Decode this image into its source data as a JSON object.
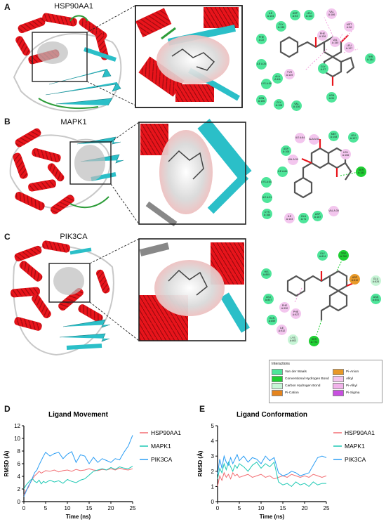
{
  "panels": {
    "A": {
      "letter": "A",
      "protein": "HSP90AA1"
    },
    "B": {
      "letter": "B",
      "protein": "MAPK1"
    },
    "C": {
      "letter": "C",
      "protein": "PIK3CA"
    },
    "D": {
      "letter": "D"
    },
    "E": {
      "letter": "E"
    }
  },
  "colors": {
    "helix": "#e8141b",
    "sheet": "#2bbfc8",
    "coil": "#c8c8c8",
    "turn": "#2e9d3a"
  },
  "residues": {
    "A": [
      {
        "id": "r1",
        "label": "ILE A:104",
        "type": "vdw"
      },
      {
        "id": "r2",
        "label": "GLY A:135",
        "type": "vdw"
      },
      {
        "id": "r3",
        "label": "ASP A:93",
        "type": "vdw"
      },
      {
        "id": "r4",
        "label": "LEU A:103",
        "type": "vdw"
      },
      {
        "id": "r5",
        "label": "VAL A:186",
        "type": "alkyl"
      },
      {
        "id": "r6",
        "label": "MET A:98",
        "type": "alkyl"
      },
      {
        "id": "r7",
        "label": "PHE A:138",
        "type": "alkyl"
      },
      {
        "id": "r8",
        "label": "VAL A:150",
        "type": "alkyl"
      },
      {
        "id": "r9",
        "label": "LEU A:107",
        "type": "alkyl"
      },
      {
        "id": "r10",
        "label": "PHE A:22",
        "type": "vdw"
      },
      {
        "id": "r11",
        "label": "ILE A:26",
        "type": "vdw"
      },
      {
        "id": "r12",
        "label": "THR A:184",
        "type": "vdw"
      },
      {
        "id": "r13",
        "label": "TYR A:139",
        "type": "alkyl"
      },
      {
        "id": "r14",
        "label": "ALA A:111",
        "type": "vdw"
      },
      {
        "id": "r15",
        "label": "LYS A:58",
        "type": "vdw"
      },
      {
        "id": "r16",
        "label": "ASN A:106",
        "type": "vdw"
      },
      {
        "id": "r17",
        "label": "GLY A:108",
        "type": "vdw"
      },
      {
        "id": "r18",
        "label": "VAL A:136",
        "type": "vdw"
      },
      {
        "id": "r19",
        "label": "ASN A:51",
        "type": "vdw"
      },
      {
        "id": "r20",
        "label": "GLY A:97",
        "type": "vdw"
      }
    ],
    "B": [
      {
        "id": "b1",
        "label": "ASP A:106",
        "type": "vdw"
      },
      {
        "id": "b2",
        "label": "ILE A:84",
        "type": "alkyl"
      },
      {
        "id": "b3",
        "label": "ALA A:52",
        "type": "alkyl"
      },
      {
        "id": "b4",
        "label": "MET A:108",
        "type": "vdw"
      },
      {
        "id": "b5",
        "label": "LEU A:107",
        "type": "vdw"
      },
      {
        "id": "b6",
        "label": "VAL A:39",
        "type": "alkyl"
      },
      {
        "id": "b7",
        "label": "ILE A:84",
        "type": "vdw"
      },
      {
        "id": "b8",
        "label": "LEU A:156",
        "type": "alkyl"
      },
      {
        "id": "b9",
        "label": "LYS A:54",
        "type": "vdw"
      },
      {
        "id": "b10",
        "label": "ILE A:31",
        "type": "vdw"
      },
      {
        "id": "b11",
        "label": "CYS A:166",
        "type": "vdw"
      },
      {
        "id": "b12",
        "label": "ILE A:103",
        "type": "alkyl"
      },
      {
        "id": "b13",
        "label": "GLU A:71",
        "type": "vdw"
      },
      {
        "id": "b14",
        "label": "ASP A:167",
        "type": "vdw"
      },
      {
        "id": "b15",
        "label": "VAL A:39",
        "type": "alkyl"
      },
      {
        "id": "b16",
        "label": "SER A:153",
        "type": "hb"
      }
    ],
    "C": [
      {
        "id": "c1",
        "label": "GLY A:814",
        "type": "vdw"
      },
      {
        "id": "c2",
        "label": "TRP A:780",
        "type": "hb"
      },
      {
        "id": "c3",
        "label": "HIS A:855",
        "type": "vdw"
      },
      {
        "id": "c4",
        "label": "ASP A:810",
        "type": "anion"
      },
      {
        "id": "c5",
        "label": "GLU A:826",
        "type": "chb"
      },
      {
        "id": "c6",
        "label": "LEU A:807",
        "type": "vdw"
      },
      {
        "id": "c7",
        "label": "PHE A:930",
        "type": "alkyl"
      },
      {
        "id": "c8",
        "label": "PHE A:927",
        "type": "alkyl"
      },
      {
        "id": "c9",
        "label": "ASN A:851",
        "type": "vdw"
      },
      {
        "id": "c10",
        "label": "ILE A:932",
        "type": "alkyl"
      },
      {
        "id": "c11",
        "label": "GLN A:859",
        "type": "vdw"
      },
      {
        "id": "c12",
        "label": "LYS A:802",
        "type": "chb"
      },
      {
        "id": "c13",
        "label": "SER A:774",
        "type": "hb"
      }
    ]
  },
  "legend": {
    "title": "Interactions",
    "items": [
      {
        "label": "Van der Waals",
        "color": "#4ee59a"
      },
      {
        "label": "Conventional Hydrogen Bond",
        "color": "#1fcf33"
      },
      {
        "label": "Carbon Hydrogen Bond",
        "color": "#c7f5d6"
      },
      {
        "label": "Pi-Cation",
        "color": "#e5841d"
      },
      {
        "label": "Pi-Anion",
        "color": "#e89928"
      },
      {
        "label": "Alkyl",
        "color": "#f3c6ee"
      },
      {
        "label": "Pi-Alkyl",
        "color": "#f1b3ea"
      },
      {
        "label": "Pi-Sigma",
        "color": "#c84fe0"
      }
    ]
  },
  "chart_data": [
    {
      "type": "line",
      "title": "Ligand Movement",
      "xlabel": "Time (ns)",
      "ylabel": "RMSD (Å)",
      "xlim": [
        0,
        25
      ],
      "ylim": [
        0,
        12
      ],
      "xticks": [
        "0",
        "5",
        "10",
        "15",
        "20",
        "25"
      ],
      "yticks": [
        "0",
        "2",
        "4",
        "6",
        "8",
        "10",
        "12"
      ],
      "series": [
        {
          "name": "HSP90AA1",
          "color": "#f26d72",
          "x": [
            0,
            0.5,
            1,
            1.5,
            2,
            2.5,
            3,
            3.5,
            4,
            4.5,
            5,
            6,
            7,
            8,
            9,
            10,
            11,
            12,
            13,
            14,
            15,
            16,
            17,
            18,
            19,
            20,
            21,
            22,
            23,
            24,
            25
          ],
          "y": [
            1.0,
            1.8,
            2.2,
            3.0,
            3.6,
            4.1,
            4.4,
            4.8,
            4.5,
            4.7,
            4.9,
            4.8,
            5.0,
            4.7,
            4.9,
            5.0,
            4.8,
            5.1,
            4.9,
            5.0,
            5.2,
            5.0,
            4.9,
            5.1,
            5.0,
            5.2,
            5.0,
            5.3,
            5.1,
            5.0,
            5.2
          ]
        },
        {
          "name": "MAPK1",
          "color": "#1ec9b4",
          "x": [
            0,
            0.5,
            1,
            1.5,
            2,
            2.5,
            3,
            3.5,
            4,
            4.5,
            5,
            6,
            7,
            8,
            9,
            10,
            11,
            12,
            13,
            14,
            15,
            16,
            17,
            18,
            19,
            20,
            21,
            22,
            23,
            24,
            25
          ],
          "y": [
            2.0,
            2.6,
            3.0,
            3.4,
            3.6,
            3.2,
            3.0,
            3.4,
            2.8,
            3.2,
            3.0,
            3.4,
            3.1,
            3.3,
            2.9,
            3.5,
            3.2,
            3.0,
            3.4,
            3.6,
            4.2,
            4.8,
            5.0,
            5.2,
            5.0,
            5.4,
            5.1,
            5.5,
            5.3,
            5.2,
            5.6
          ]
        },
        {
          "name": "PIK3CA",
          "color": "#2a9df4",
          "x": [
            0,
            0.5,
            1,
            1.5,
            2,
            2.5,
            3,
            3.5,
            4,
            4.5,
            5,
            6,
            7,
            8,
            9,
            10,
            11,
            12,
            13,
            14,
            15,
            16,
            17,
            18,
            19,
            20,
            21,
            22,
            23,
            24,
            25
          ],
          "y": [
            0.8,
            1.6,
            2.4,
            3.0,
            3.8,
            4.6,
            5.0,
            5.8,
            6.5,
            7.2,
            7.8,
            7.2,
            7.6,
            7.8,
            6.8,
            7.5,
            7.9,
            6.2,
            7.4,
            7.2,
            6.0,
            7.0,
            6.2,
            6.8,
            6.5,
            6.2,
            6.8,
            6.6,
            7.8,
            8.8,
            10.5
          ]
        }
      ]
    },
    {
      "type": "line",
      "title": "Ligand Conformation",
      "xlabel": "Time (ns)",
      "ylabel": "RMSD (Å)",
      "xlim": [
        0,
        25
      ],
      "ylim": [
        0,
        5
      ],
      "xticks": [
        "0",
        "5",
        "10",
        "15",
        "20",
        "25"
      ],
      "yticks": [
        "0",
        "1",
        "2",
        "3",
        "4",
        "5"
      ],
      "series": [
        {
          "name": "HSP90AA1",
          "color": "#f26d72",
          "x": [
            0,
            0.5,
            1,
            1.5,
            2,
            2.5,
            3,
            3.5,
            4,
            4.5,
            5,
            6,
            7,
            8,
            9,
            10,
            11,
            12,
            13,
            14,
            15,
            16,
            17,
            18,
            19,
            20,
            21,
            22,
            23,
            24,
            25
          ],
          "y": [
            1.0,
            1.7,
            1.4,
            1.9,
            1.6,
            1.8,
            1.5,
            1.9,
            1.7,
            1.8,
            1.6,
            1.7,
            1.8,
            1.6,
            1.7,
            1.8,
            1.6,
            1.7,
            1.5,
            1.6,
            1.7,
            1.6,
            1.8,
            1.7,
            1.6,
            1.7,
            1.6,
            1.8,
            1.7,
            1.6,
            1.7
          ]
        },
        {
          "name": "MAPK1",
          "color": "#1ec9b4",
          "x": [
            0,
            0.5,
            1,
            1.5,
            2,
            2.5,
            3,
            3.5,
            4,
            4.5,
            5,
            6,
            7,
            8,
            9,
            10,
            11,
            12,
            13,
            14,
            15,
            16,
            17,
            18,
            19,
            20,
            21,
            22,
            23,
            24,
            25
          ],
          "y": [
            1.5,
            2.2,
            1.9,
            2.5,
            2.1,
            2.6,
            2.3,
            2.0,
            2.4,
            2.2,
            2.5,
            2.3,
            2.0,
            2.4,
            2.6,
            2.2,
            2.5,
            2.3,
            2.6,
            1.3,
            1.1,
            1.2,
            1.0,
            1.3,
            1.1,
            1.2,
            1.0,
            1.3,
            1.1,
            1.2,
            1.2
          ]
        },
        {
          "name": "PIK3CA",
          "color": "#2a9df4",
          "x": [
            0,
            0.5,
            1,
            1.5,
            2,
            2.5,
            3,
            3.5,
            4,
            4.5,
            5,
            6,
            7,
            8,
            9,
            10,
            11,
            12,
            13,
            14,
            15,
            16,
            17,
            18,
            19,
            20,
            21,
            22,
            23,
            24,
            25
          ],
          "y": [
            1.8,
            2.8,
            2.2,
            3.0,
            2.6,
            2.4,
            2.9,
            2.5,
            2.8,
            3.1,
            2.7,
            3.0,
            2.6,
            2.9,
            2.8,
            2.5,
            3.0,
            2.7,
            2.9,
            1.9,
            1.7,
            1.8,
            2.0,
            1.9,
            1.7,
            1.8,
            1.9,
            2.4,
            2.9,
            3.0,
            2.9
          ]
        }
      ]
    }
  ]
}
